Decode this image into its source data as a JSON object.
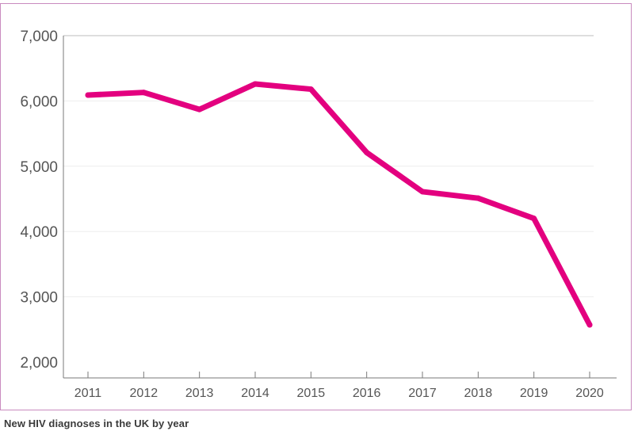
{
  "caption": "New HIV diagnoses in the UK by year",
  "chart_data": {
    "type": "line",
    "title": "",
    "xlabel": "",
    "ylabel": "",
    "categories": [
      "2011",
      "2012",
      "2013",
      "2014",
      "2015",
      "2016",
      "2017",
      "2018",
      "2019",
      "2020"
    ],
    "series": [
      {
        "values": [
          6090,
          6130,
          5870,
          6260,
          6180,
          5210,
          4610,
          4510,
          4200,
          2570
        ],
        "color": "#e3007f"
      }
    ],
    "ylim": [
      2000,
      7000
    ],
    "y_ticks": [
      {
        "value": 2000,
        "label": "2,000"
      },
      {
        "value": 3000,
        "label": "3,000"
      },
      {
        "value": 4000,
        "label": "4,000"
      },
      {
        "value": 5000,
        "label": "5,000"
      },
      {
        "value": 6000,
        "label": "6,000"
      },
      {
        "value": 7000,
        "label": "7,000"
      }
    ],
    "grid": true,
    "legend": "none"
  }
}
